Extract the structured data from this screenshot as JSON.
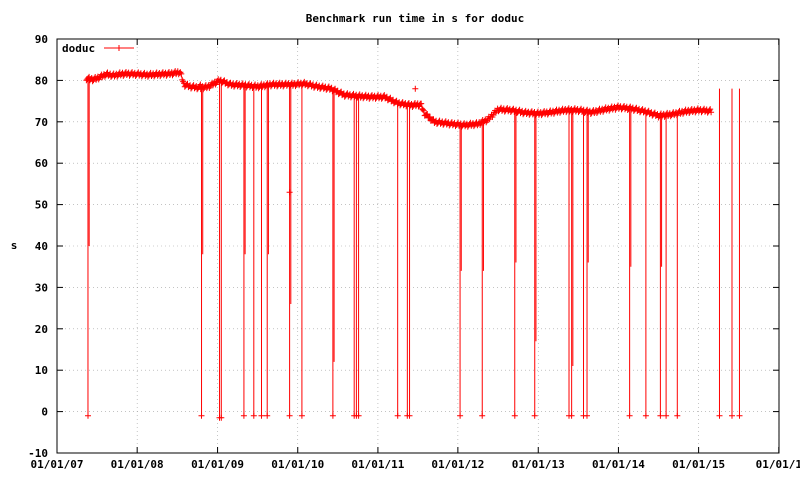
{
  "chart_data": {
    "type": "line",
    "title": "Benchmark run time in s for doduc",
    "xlabel": "",
    "ylabel": "s",
    "ylim": [
      -10,
      90
    ],
    "yticks": [
      -10,
      0,
      10,
      20,
      30,
      40,
      50,
      60,
      70,
      80,
      90
    ],
    "xlim": [
      "2007-01-01",
      "2016-01-01"
    ],
    "xticks": [
      {
        "date": "2007-01-01",
        "label": "01/01/07"
      },
      {
        "date": "2008-01-01",
        "label": "01/01/08"
      },
      {
        "date": "2009-01-01",
        "label": "01/01/09"
      },
      {
        "date": "2010-01-01",
        "label": "01/01/10"
      },
      {
        "date": "2011-01-01",
        "label": "01/01/11"
      },
      {
        "date": "2011-12-31",
        "label": "01/01/12"
      },
      {
        "date": "2012-12-31",
        "label": "01/01/13"
      },
      {
        "date": "2013-12-31",
        "label": "01/01/14"
      },
      {
        "date": "2014-12-31",
        "label": "01/01/15"
      },
      {
        "date": "2015-12-31",
        "label": "01/01/1"
      }
    ],
    "grid": true,
    "legend_position": "top-left",
    "series": [
      {
        "name": "doduc",
        "color": "#ff0000",
        "marker": "plus",
        "trend": [
          [
            "2007-05-15",
            80.5
          ],
          [
            "2007-06-15",
            80.2
          ],
          [
            "2007-07-15",
            80.8
          ],
          [
            "2007-08-15",
            81.5
          ],
          [
            "2007-09-15",
            81.2
          ],
          [
            "2007-10-15",
            81.5
          ],
          [
            "2007-11-15",
            81.6
          ],
          [
            "2008-01-01",
            81.5
          ],
          [
            "2008-02-15",
            81.3
          ],
          [
            "2008-03-15",
            81.4
          ],
          [
            "2008-04-15",
            81.5
          ],
          [
            "2008-06-01",
            81.6
          ],
          [
            "2008-07-15",
            82.0
          ],
          [
            "2008-08-01",
            79.0
          ],
          [
            "2008-09-01",
            78.5
          ],
          [
            "2008-10-15",
            78.2
          ],
          [
            "2008-11-20",
            78.5
          ],
          [
            "2009-01-10",
            80.0
          ],
          [
            "2009-03-01",
            79.0
          ],
          [
            "2009-05-01",
            78.8
          ],
          [
            "2009-07-01",
            78.5
          ],
          [
            "2009-09-01",
            79.0
          ],
          [
            "2009-12-01",
            79.0
          ],
          [
            "2010-02-01",
            79.2
          ],
          [
            "2010-04-01",
            78.5
          ],
          [
            "2010-06-01",
            78.0
          ],
          [
            "2010-08-01",
            76.5
          ],
          [
            "2010-10-01",
            76.2
          ],
          [
            "2010-12-01",
            76.0
          ],
          [
            "2011-02-01",
            76.0
          ],
          [
            "2011-04-01",
            74.5
          ],
          [
            "2011-06-01",
            74.0
          ],
          [
            "2011-07-15",
            74.2
          ],
          [
            "2011-08-01",
            72.0
          ],
          [
            "2011-09-15",
            70.0
          ],
          [
            "2011-12-01",
            69.5
          ],
          [
            "2012-02-01",
            69.2
          ],
          [
            "2012-04-01",
            69.5
          ],
          [
            "2012-05-15",
            70.5
          ],
          [
            "2012-07-01",
            73.0
          ],
          [
            "2012-09-01",
            72.8
          ],
          [
            "2012-11-01",
            72.2
          ],
          [
            "2013-01-01",
            72.0
          ],
          [
            "2013-03-01",
            72.3
          ],
          [
            "2013-05-01",
            72.8
          ],
          [
            "2013-07-01",
            72.8
          ],
          [
            "2013-09-01",
            72.3
          ],
          [
            "2013-11-01",
            73.0
          ],
          [
            "2014-01-01",
            73.5
          ],
          [
            "2014-03-01",
            73.2
          ],
          [
            "2014-05-01",
            72.5
          ],
          [
            "2014-07-01",
            71.5
          ],
          [
            "2014-09-01",
            71.8
          ],
          [
            "2014-11-01",
            72.5
          ],
          [
            "2015-01-01",
            72.8
          ],
          [
            "2015-03-01",
            72.6
          ]
        ],
        "drops": [
          {
            "date": "2007-05-22",
            "low": -1.0
          },
          {
            "date": "2008-10-20",
            "low": -1.0
          },
          {
            "date": "2009-01-10",
            "low": -1.5
          },
          {
            "date": "2009-01-18",
            "low": -1.5
          },
          {
            "date": "2009-05-01",
            "low": -1.0
          },
          {
            "date": "2009-06-15",
            "low": -1.0
          },
          {
            "date": "2009-07-20",
            "low": -1.0
          },
          {
            "date": "2009-08-15",
            "low": -1.0
          },
          {
            "date": "2009-11-25",
            "low": -1.0
          },
          {
            "date": "2010-01-20",
            "low": -1.0
          },
          {
            "date": "2010-06-10",
            "low": -1.0
          },
          {
            "date": "2010-09-15",
            "low": -1.0
          },
          {
            "date": "2010-09-25",
            "low": -1.0
          },
          {
            "date": "2010-10-05",
            "low": -1.0
          },
          {
            "date": "2011-04-01",
            "low": -1.0
          },
          {
            "date": "2011-05-15",
            "low": -1.0
          },
          {
            "date": "2011-05-25",
            "low": -1.0
          },
          {
            "date": "2012-01-10",
            "low": -1.0
          },
          {
            "date": "2012-04-20",
            "low": -1.0
          },
          {
            "date": "2012-09-15",
            "low": -1.0
          },
          {
            "date": "2012-12-15",
            "low": -1.0
          },
          {
            "date": "2013-05-20",
            "low": -1.0
          },
          {
            "date": "2013-06-01",
            "low": -1.0
          },
          {
            "date": "2013-07-25",
            "low": -1.0
          },
          {
            "date": "2013-08-10",
            "low": -1.0
          },
          {
            "date": "2014-02-20",
            "low": -1.0
          },
          {
            "date": "2014-05-05",
            "low": -1.0
          },
          {
            "date": "2014-07-10",
            "low": -1.0
          },
          {
            "date": "2014-08-05",
            "low": -1.0
          },
          {
            "date": "2014-09-25",
            "low": -1.0
          },
          {
            "date": "2015-04-05",
            "low": -1.0
          },
          {
            "date": "2015-06-01",
            "low": -1.0
          },
          {
            "date": "2015-07-05",
            "low": -1.0
          }
        ],
        "partial_drops": [
          {
            "date": "2007-05-22",
            "low": 40
          },
          {
            "date": "2008-10-20",
            "low": 38
          },
          {
            "date": "2009-05-01",
            "low": 38
          },
          {
            "date": "2009-08-15",
            "low": 38
          },
          {
            "date": "2009-11-25",
            "low": 26
          },
          {
            "date": "2010-06-10",
            "low": 12
          },
          {
            "date": "2012-01-10",
            "low": 34
          },
          {
            "date": "2012-04-20",
            "low": 34
          },
          {
            "date": "2012-09-15",
            "low": 36
          },
          {
            "date": "2012-12-15",
            "low": 17
          },
          {
            "date": "2013-06-01",
            "low": 11
          },
          {
            "date": "2013-08-10",
            "low": 36
          },
          {
            "date": "2014-02-20",
            "low": 35
          },
          {
            "date": "2014-07-10",
            "low": 35
          }
        ],
        "isolated_points": [
          {
            "date": "2009-11-25",
            "value": 53
          },
          {
            "date": "2011-06-20",
            "value": 78
          },
          {
            "date": "2008-10-15",
            "value": 79
          }
        ]
      }
    ]
  }
}
